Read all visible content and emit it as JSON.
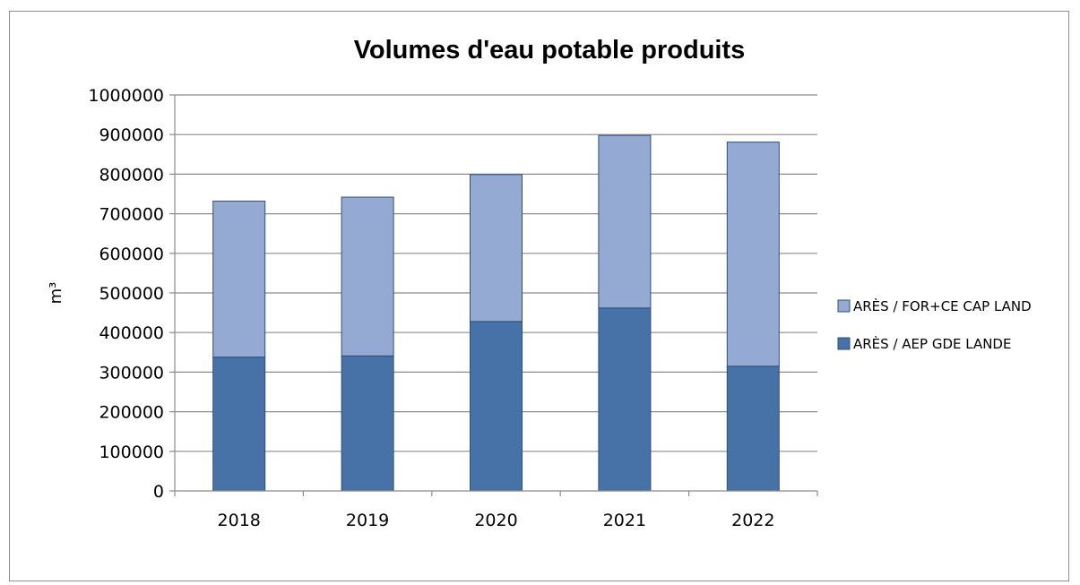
{
  "chart_data": {
    "type": "bar",
    "stacked": true,
    "title": "Volumes d'eau potable produits",
    "xlabel": "",
    "ylabel": "m³",
    "categories": [
      "2018",
      "2019",
      "2020",
      "2021",
      "2022"
    ],
    "ylim": [
      0,
      1000000
    ],
    "yticks": [
      "0",
      "100000",
      "200000",
      "300000",
      "400000",
      "500000",
      "600000",
      "700000",
      "800000",
      "900000",
      "1000000"
    ],
    "grid": true,
    "legend_position": "right",
    "series": [
      {
        "name": "ARÈS / AEP GDE LANDE",
        "values": [
          338000,
          341000,
          428000,
          462000,
          315000
        ],
        "color": "#4672a8"
      },
      {
        "name": "ARÈS / FOR+CE CAP LAND",
        "values": [
          394000,
          401000,
          371000,
          436000,
          566000
        ],
        "color": "#95aad3"
      }
    ]
  }
}
